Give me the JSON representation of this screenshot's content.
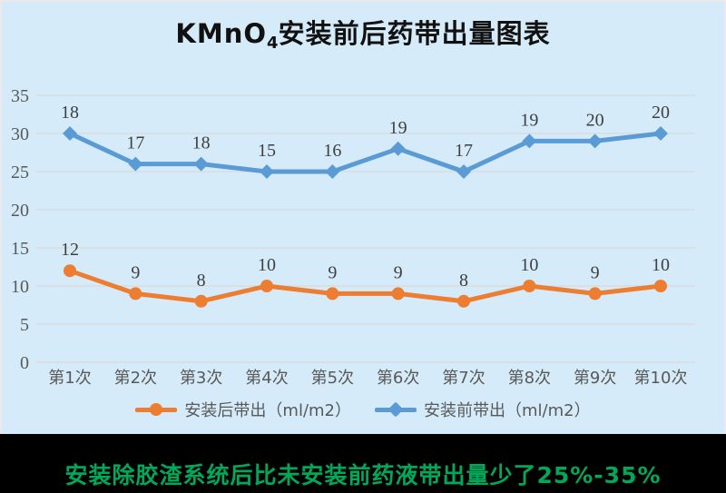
{
  "page": {
    "background": "#D5EBF9",
    "band_color": "#000000",
    "note_color": "#00A859"
  },
  "title": {
    "prefix": "KMnO",
    "subscript": "4",
    "suffix": "安装前后药带出量图表"
  },
  "chart_data": {
    "type": "line",
    "stacked": true,
    "title": "KMnO4安装前后药带出量图表",
    "categories": [
      "第1次",
      "第2次",
      "第3次",
      "第4次",
      "第5次",
      "第6次",
      "第7次",
      "第8次",
      "第9次",
      "第10次"
    ],
    "series": [
      {
        "name": "安装后带出（ml/m2）",
        "values": [
          12,
          9,
          8,
          10,
          9,
          9,
          8,
          10,
          9,
          10
        ],
        "color": "#ED7D31",
        "marker": "circle",
        "stack_on_previous": false
      },
      {
        "name": "安装前带出（ml/m2）",
        "values": [
          18,
          17,
          18,
          15,
          16,
          19,
          17,
          19,
          20,
          20
        ],
        "color": "#5B9BD5",
        "marker": "diamond",
        "stack_on_previous": true
      }
    ],
    "ylim": [
      0,
      35
    ],
    "ytick_step": 5,
    "yticks": [
      0,
      5,
      10,
      15,
      20,
      25,
      30,
      35
    ],
    "grid": true,
    "legend_position": "bottom",
    "gridline_color": "#D9D9D9",
    "axis_label_color": "#595959",
    "data_label_color": "#3F3F3F"
  },
  "footer": {
    "note": "安装除胶渣系统后比未安装前药液带出量少了25%-35%"
  }
}
